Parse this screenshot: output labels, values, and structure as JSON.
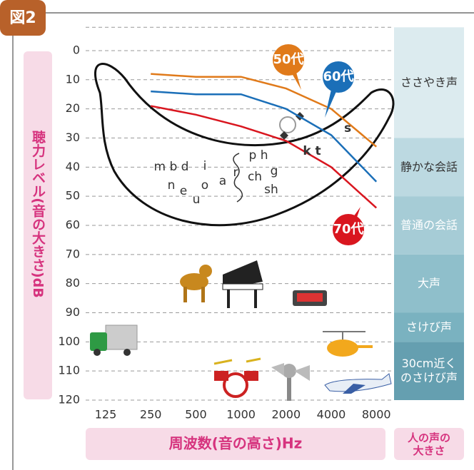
{
  "figure_label": "図2",
  "chart_data": {
    "type": "line",
    "y_label": "聴力レベル(音の大きさ)dB",
    "x_label": "周波数(音の高さ)Hz",
    "band_header": [
      "人の声の",
      "大きさ"
    ],
    "categories": [
      125,
      250,
      500,
      1000,
      2000,
      4000,
      8000
    ],
    "ylim": [
      -8,
      120
    ],
    "y_inverted": true,
    "yticks": [
      0,
      10,
      20,
      30,
      40,
      50,
      60,
      70,
      80,
      90,
      100,
      110,
      120
    ],
    "grid": true,
    "series": [
      {
        "name": "50代",
        "color": "#e07a1a",
        "values": [
          null,
          8,
          9,
          9,
          13,
          20,
          33
        ]
      },
      {
        "name": "60代",
        "color": "#1b6fb8",
        "values": [
          null,
          14,
          15,
          15,
          20,
          29,
          45
        ]
      },
      {
        "name": "70代",
        "color": "#d9161f",
        "values": [
          null,
          19,
          22,
          26,
          31,
          40,
          54
        ]
      }
    ],
    "bands": [
      {
        "label": [
          "ささやき声"
        ],
        "from": -8,
        "to": 30,
        "color": "#dcebef"
      },
      {
        "label": [
          "静かな会話"
        ],
        "from": 30,
        "to": 50,
        "color": "#bcd9e1"
      },
      {
        "label": [
          "普通の会話"
        ],
        "from": 50,
        "to": 70,
        "color": "#a6ccd6"
      },
      {
        "label": [
          "大声"
        ],
        "from": 70,
        "to": 90,
        "color": "#8fbfcb"
      },
      {
        "label": [
          "さけび声"
        ],
        "from": 90,
        "to": 100,
        "color": "#7ab2c0"
      },
      {
        "label": [
          "30cm近く",
          "のさけび声"
        ],
        "from": 100,
        "to": 120,
        "color": "#659fb0"
      }
    ],
    "annotations": [
      "m b d",
      "i",
      "p h",
      "g",
      "ch",
      "sh",
      "n",
      "e",
      "u",
      "o",
      "a",
      "r",
      "s",
      "k t"
    ]
  }
}
